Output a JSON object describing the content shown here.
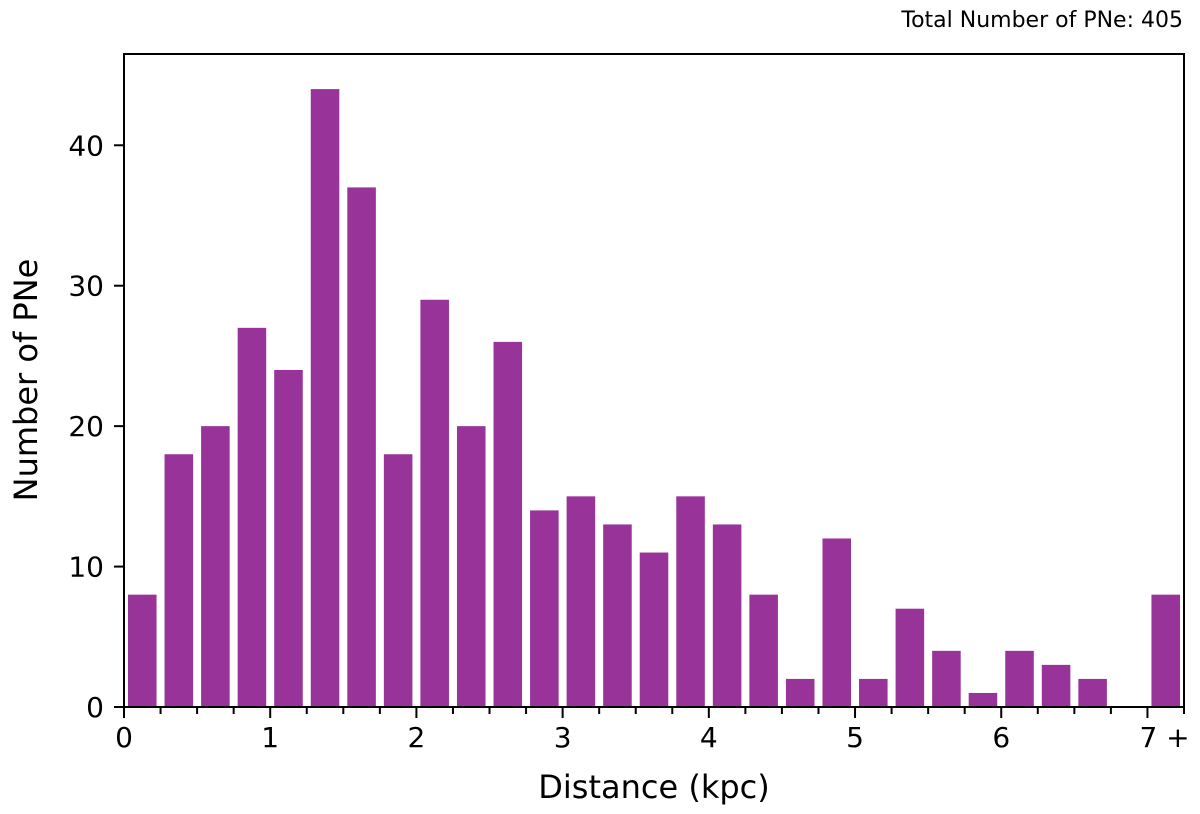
{
  "chart_data": {
    "type": "bar",
    "total_label": "Total Number of PNe: 405",
    "xlabel": "Distance (kpc)",
    "ylabel": "Number of PNe",
    "bar_color": "#983399",
    "bin_width": 0.25,
    "xlim": [
      0,
      7.25
    ],
    "ylim": [
      0,
      46.5
    ],
    "x_ticks": [
      {
        "value": 0,
        "label": "0"
      },
      {
        "value": 1,
        "label": "1"
      },
      {
        "value": 2,
        "label": "2"
      },
      {
        "value": 3,
        "label": "3"
      },
      {
        "value": 4,
        "label": "4"
      },
      {
        "value": 5,
        "label": "5"
      },
      {
        "value": 6,
        "label": "6"
      },
      {
        "value": 7,
        "label": "7 +"
      }
    ],
    "y_ticks": [
      {
        "value": 0,
        "label": "0"
      },
      {
        "value": 10,
        "label": "10"
      },
      {
        "value": 20,
        "label": "20"
      },
      {
        "value": 30,
        "label": "30"
      },
      {
        "value": 40,
        "label": "40"
      }
    ],
    "bins_start": [
      0,
      0.25,
      0.5,
      0.75,
      1,
      1.25,
      1.5,
      1.75,
      2,
      2.25,
      2.5,
      2.75,
      3,
      3.25,
      3.5,
      3.75,
      4,
      4.25,
      4.5,
      4.75,
      5,
      5.25,
      5.5,
      5.75,
      6,
      6.25,
      6.5,
      6.75,
      7
    ],
    "values": [
      8,
      18,
      20,
      27,
      24,
      44,
      37,
      18,
      29,
      20,
      26,
      14,
      15,
      13,
      11,
      15,
      13,
      8,
      2,
      12,
      2,
      7,
      4,
      1,
      4,
      3,
      2,
      0,
      8
    ]
  }
}
